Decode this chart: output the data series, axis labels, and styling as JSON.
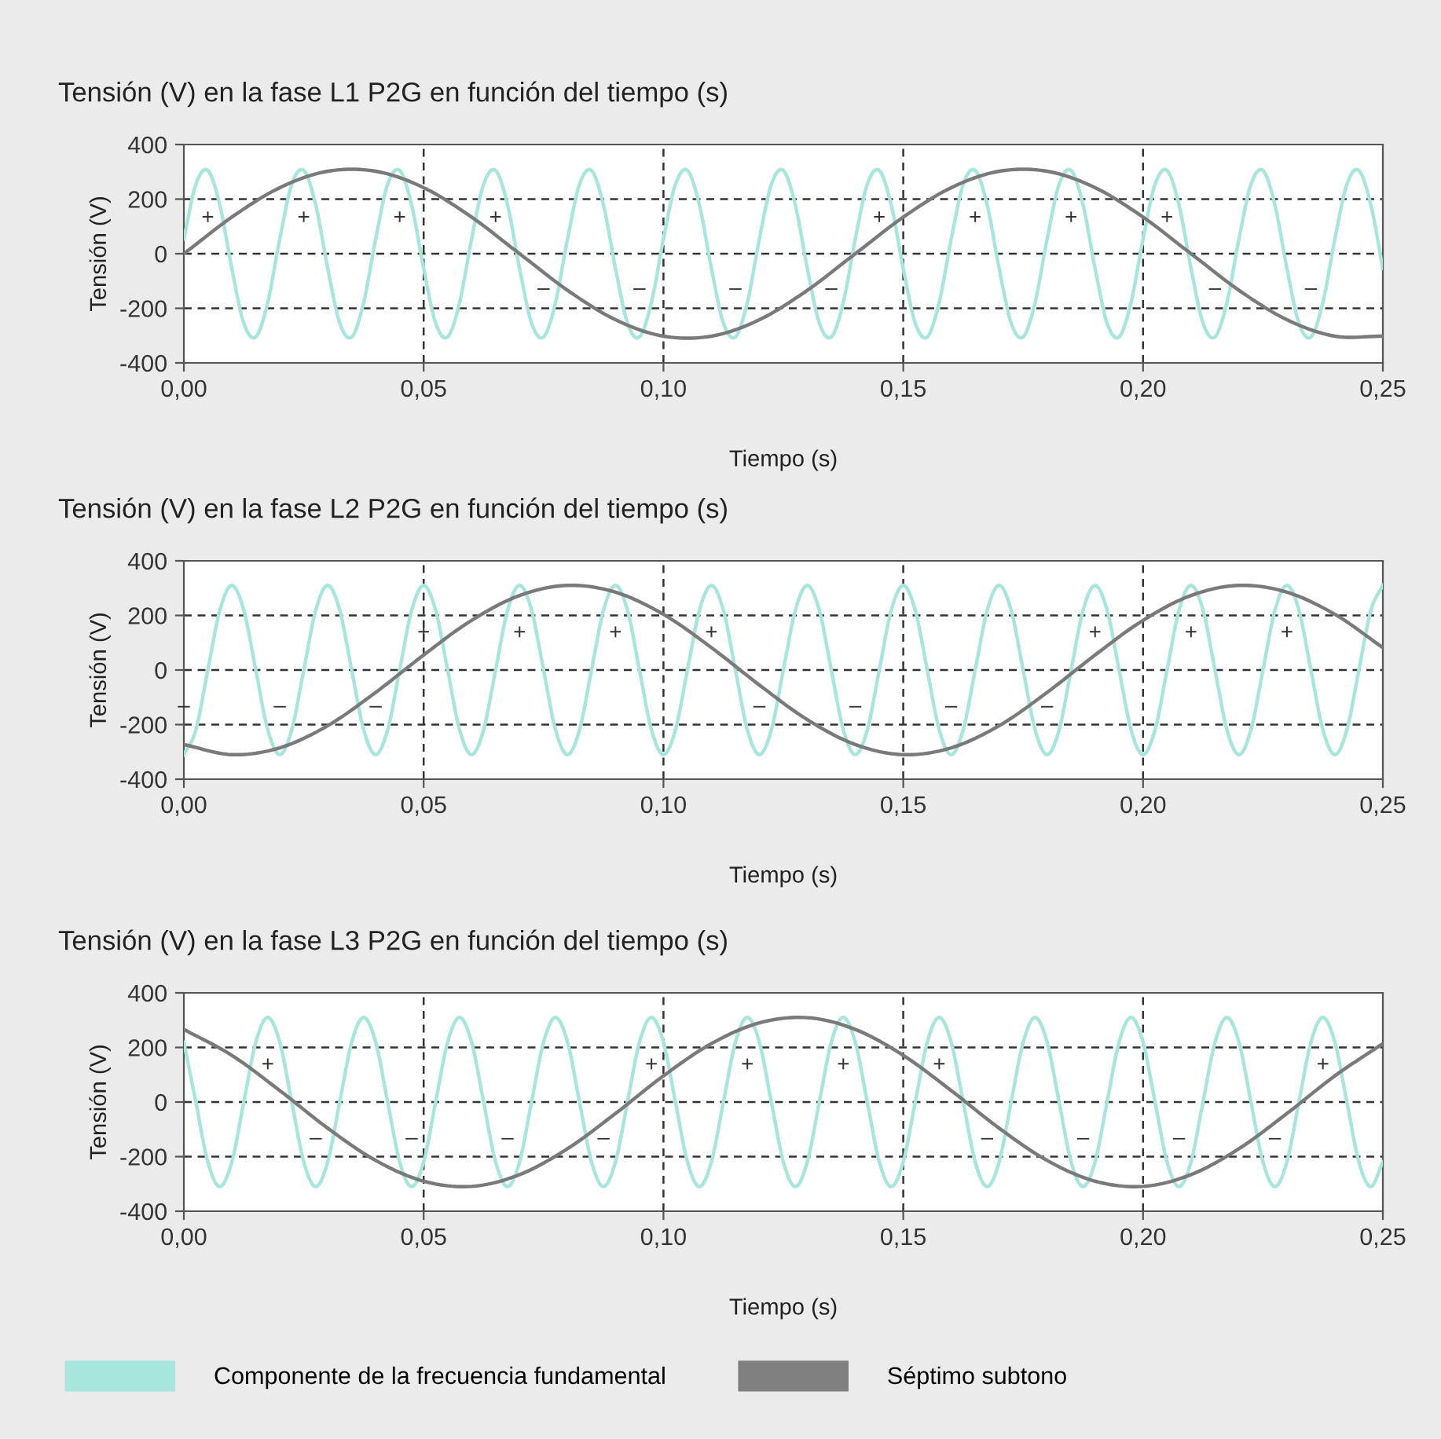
{
  "chart_data": [
    {
      "type": "line",
      "title": "Tensión (V) en la fase L1 P2G en función del tiempo (s)",
      "xlabel": "Tiempo (s)",
      "ylabel": "Tensión (V)",
      "xlim": [
        0,
        0.25
      ],
      "ylim": [
        -400,
        400
      ],
      "xticks": [
        {
          "value": 0,
          "label": "0,00"
        },
        {
          "value": 0.05,
          "label": "0,05"
        },
        {
          "value": 0.1,
          "label": "0,10"
        },
        {
          "value": 0.15,
          "label": "0,15"
        },
        {
          "value": 0.2,
          "label": "0,20"
        },
        {
          "value": 0.25,
          "label": "0,25"
        }
      ],
      "yticks": [
        -400,
        -200,
        0,
        200,
        400
      ],
      "grid": true,
      "legend": "bottom",
      "series": [
        {
          "name": "Componente de la frecuencia fundamental",
          "color": "#a6e6dc",
          "x": [
            0,
            0.0025,
            0.005,
            0.0075,
            0.01,
            0.0125,
            0.015,
            0.0175,
            0.02,
            0.0225,
            0.025,
            0.0275,
            0.03,
            0.0325,
            0.035,
            0.0375,
            0.04,
            0.0425,
            0.045,
            0.0475,
            0.05,
            0.0525,
            0.055,
            0.0575,
            0.06,
            0.0625,
            0.065,
            0.0675,
            0.07,
            0.0725,
            0.075,
            0.0775,
            0.08,
            0.0825,
            0.085,
            0.0875,
            0.09,
            0.0925,
            0.095,
            0.0975,
            0.1,
            0.1025,
            0.105,
            0.1075,
            0.11,
            0.1125,
            0.115,
            0.1175,
            0.12,
            0.1225,
            0.125,
            0.1275,
            0.13,
            0.1325,
            0.135,
            0.1375,
            0.14,
            0.1425,
            0.145,
            0.1475,
            0.15,
            0.1525,
            0.155,
            0.1575,
            0.16,
            0.1625,
            0.165,
            0.1675,
            0.17,
            0.1725,
            0.175,
            0.1775,
            0.18,
            0.1825,
            0.185,
            0.1875,
            0.19,
            0.1925,
            0.195,
            0.1975,
            0.2,
            0.2025,
            0.205,
            0.2075,
            0.21,
            0.2125,
            0.215,
            0.2175,
            0.22,
            0.2225,
            0.225,
            0.2275,
            0.23,
            0.2325,
            0.235,
            0.2375,
            0.24,
            0.2425,
            0.245,
            0.2475,
            0.25
          ],
          "values": [
            54,
            254,
            305,
            178,
            -54,
            -254,
            -305,
            -178,
            54,
            254,
            305,
            178,
            -54,
            -254,
            -305,
            -178,
            54,
            254,
            305,
            178,
            -54,
            -254,
            -305,
            -178,
            54,
            254,
            305,
            178,
            -54,
            -254,
            -305,
            -178,
            54,
            254,
            305,
            178,
            -54,
            -254,
            -305,
            -178,
            54,
            254,
            305,
            178,
            -54,
            -254,
            -305,
            -178,
            54,
            254,
            305,
            178,
            -54,
            -254,
            -305,
            -178,
            54,
            254,
            305,
            178,
            -54,
            -254,
            -305,
            -178,
            54,
            254,
            305,
            178,
            -54,
            -254,
            -305,
            -178,
            54,
            254,
            305,
            178,
            -54,
            -254,
            -305,
            -178,
            54,
            254,
            305,
            178,
            -54,
            -254,
            -305,
            -178,
            54,
            254,
            305,
            178,
            -54,
            -254,
            -305,
            -178,
            54,
            254,
            305,
            178,
            -54
          ]
        },
        {
          "name": "Séptimo subtono",
          "color": "#7a7a7a",
          "x": [
            0,
            0.01,
            0.02,
            0.03,
            0.04,
            0.05,
            0.06,
            0.07,
            0.08,
            0.09,
            0.1,
            0.11,
            0.12,
            0.13,
            0.14,
            0.15,
            0.16,
            0.17,
            0.18,
            0.19,
            0.2,
            0.21,
            0.22,
            0.23,
            0.24,
            0.25
          ],
          "values": [
            0,
            134,
            242,
            302,
            302,
            242,
            134,
            0,
            -134,
            -242,
            -302,
            -302,
            -242,
            -134,
            0,
            134,
            242,
            302,
            302,
            242,
            134,
            0,
            -134,
            -242,
            -302,
            -302
          ]
        }
      ],
      "annotations": [
        {
          "text": "+",
          "x": 0.005,
          "y": 305
        },
        {
          "text": "+",
          "x": 0.025,
          "y": 305
        },
        {
          "text": "+",
          "x": 0.045,
          "y": 305
        },
        {
          "text": "+",
          "x": 0.065,
          "y": 305
        },
        {
          "text": "+",
          "x": 0.145,
          "y": 305
        },
        {
          "text": "+",
          "x": 0.165,
          "y": 305
        },
        {
          "text": "+",
          "x": 0.185,
          "y": 305
        },
        {
          "text": "+",
          "x": 0.205,
          "y": 305
        },
        {
          "text": "–",
          "x": 0.075,
          "y": -305
        },
        {
          "text": "–",
          "x": 0.095,
          "y": -305
        },
        {
          "text": "–",
          "x": 0.115,
          "y": -305
        },
        {
          "text": "–",
          "x": 0.135,
          "y": -305
        },
        {
          "text": "–",
          "x": 0.215,
          "y": -305
        },
        {
          "text": "–",
          "x": 0.235,
          "y": -305
        }
      ]
    },
    {
      "type": "line",
      "title": "Tensión (V) en la fase L2 P2G en función del tiempo (s)",
      "xlabel": "Tiempo (s)",
      "ylabel": "Tensión (V)",
      "xlim": [
        0,
        0.25
      ],
      "ylim": [
        -400,
        400
      ],
      "xticks": [
        {
          "value": 0,
          "label": "0,00"
        },
        {
          "value": 0.05,
          "label": "0,05"
        },
        {
          "value": 0.1,
          "label": "0,10"
        },
        {
          "value": 0.15,
          "label": "0,15"
        },
        {
          "value": 0.2,
          "label": "0,20"
        },
        {
          "value": 0.25,
          "label": "0,25"
        }
      ],
      "yticks": [
        -400,
        -200,
        0,
        200,
        400
      ],
      "grid": true,
      "series": [
        {
          "color": "#a6e6dc",
          "x": [
            0,
            0.0025,
            0.005,
            0.0075,
            0.01,
            0.0125,
            0.015,
            0.0175,
            0.02,
            0.0225,
            0.025,
            0.0275,
            0.03,
            0.0325,
            0.035,
            0.0375,
            0.04,
            0.0425,
            0.045,
            0.0475,
            0.05,
            0.0525,
            0.055,
            0.0575,
            0.06,
            0.0625,
            0.065,
            0.0675,
            0.07,
            0.0725,
            0.075,
            0.0775,
            0.08,
            0.0825,
            0.085,
            0.0875,
            0.09,
            0.0925,
            0.095,
            0.0975,
            0.1,
            0.1025,
            0.105,
            0.1075,
            0.11,
            0.1125,
            0.115,
            0.1175,
            0.12,
            0.1225,
            0.125,
            0.1275,
            0.13,
            0.1325,
            0.135,
            0.1375,
            0.14,
            0.1425,
            0.145,
            0.1475,
            0.15,
            0.1525,
            0.155,
            0.1575,
            0.16,
            0.1625,
            0.165,
            0.1675,
            0.17,
            0.1725,
            0.175,
            0.1775,
            0.18,
            0.1825,
            0.185,
            0.1875,
            0.19,
            0.1925,
            0.195,
            0.1975,
            0.2,
            0.2025,
            0.205,
            0.2075,
            0.21,
            0.2125,
            0.215,
            0.2175,
            0.22,
            0.2225,
            0.225,
            0.2275,
            0.23,
            0.2325,
            0.235,
            0.2375,
            0.24,
            0.2425,
            0.245,
            0.2475,
            0.25
          ],
          "values": [
            -310,
            -219,
            0,
            219,
            310,
            219,
            0,
            -219,
            -310,
            -219,
            0,
            219,
            310,
            219,
            0,
            -219,
            -310,
            -219,
            0,
            219,
            310,
            219,
            0,
            -219,
            -310,
            -219,
            0,
            219,
            310,
            219,
            0,
            -219,
            -310,
            -219,
            0,
            219,
            310,
            219,
            0,
            -219,
            -310,
            -219,
            0,
            219,
            310,
            219,
            0,
            -219,
            -310,
            -219,
            0,
            219,
            310,
            219,
            0,
            -219,
            -310,
            -219,
            0,
            219,
            310,
            219,
            0,
            -219,
            -310,
            -219,
            0,
            219,
            310,
            219,
            0,
            -219,
            -310,
            -219,
            0,
            219,
            310,
            219,
            0,
            -219,
            -310,
            -219,
            0,
            219,
            310,
            219,
            0,
            -219,
            -310,
            -219,
            0,
            219,
            310,
            219,
            0,
            -219,
            -310,
            -219,
            0,
            219,
            310
          ]
        },
        {
          "color": "#7a7a7a",
          "x": [
            0,
            0.01,
            0.02,
            0.03,
            0.04,
            0.05,
            0.06,
            0.07,
            0.08,
            0.09,
            0.1,
            0.11,
            0.12,
            0.13,
            0.14,
            0.15,
            0.16,
            0.17,
            0.18,
            0.19,
            0.2,
            0.21,
            0.22,
            0.23,
            0.24,
            0.25
          ],
          "values": [
            -273,
            -310,
            -285,
            -204,
            -82,
            55,
            182,
            273,
            310,
            285,
            204,
            82,
            -55,
            -182,
            -273,
            -310,
            -285,
            -204,
            -82,
            55,
            182,
            273,
            310,
            285,
            204,
            82
          ]
        }
      ],
      "annotations": [
        {
          "text": "+",
          "x": 0.05,
          "y": 310
        },
        {
          "text": "+",
          "x": 0.07,
          "y": 310
        },
        {
          "text": "+",
          "x": 0.09,
          "y": 310
        },
        {
          "text": "+",
          "x": 0.11,
          "y": 310
        },
        {
          "text": "+",
          "x": 0.19,
          "y": 310
        },
        {
          "text": "+",
          "x": 0.21,
          "y": 310
        },
        {
          "text": "+",
          "x": 0.23,
          "y": 310
        },
        {
          "text": "–",
          "x": 0.0,
          "y": -310
        },
        {
          "text": "–",
          "x": 0.02,
          "y": -310
        },
        {
          "text": "–",
          "x": 0.04,
          "y": -310
        },
        {
          "text": "–",
          "x": 0.12,
          "y": -310
        },
        {
          "text": "–",
          "x": 0.14,
          "y": -310
        },
        {
          "text": "–",
          "x": 0.16,
          "y": -310
        },
        {
          "text": "–",
          "x": 0.18,
          "y": -310
        }
      ]
    },
    {
      "type": "line",
      "title": "Tensión (V) en la fase L3 P2G en función del tiempo (s)",
      "xlabel": "Tiempo (s)",
      "ylabel": "Tensión (V)",
      "xlim": [
        0,
        0.25
      ],
      "ylim": [
        -400,
        400
      ],
      "xticks": [
        {
          "value": 0,
          "label": "0,00"
        },
        {
          "value": 0.05,
          "label": "0,05"
        },
        {
          "value": 0.1,
          "label": "0,10"
        },
        {
          "value": 0.15,
          "label": "0,15"
        },
        {
          "value": 0.2,
          "label": "0,20"
        },
        {
          "value": 0.25,
          "label": "0,25"
        }
      ],
      "yticks": [
        -400,
        -200,
        0,
        200,
        400
      ],
      "grid": true,
      "series": [
        {
          "color": "#a6e6dc",
          "x": [
            0,
            0.0025,
            0.005,
            0.0075,
            0.01,
            0.0125,
            0.015,
            0.0175,
            0.02,
            0.0225,
            0.025,
            0.0275,
            0.03,
            0.0325,
            0.035,
            0.0375,
            0.04,
            0.0425,
            0.045,
            0.0475,
            0.05,
            0.0525,
            0.055,
            0.0575,
            0.06,
            0.0625,
            0.065,
            0.0675,
            0.07,
            0.0725,
            0.075,
            0.0775,
            0.08,
            0.0825,
            0.085,
            0.0875,
            0.09,
            0.0925,
            0.095,
            0.0975,
            0.1,
            0.1025,
            0.105,
            0.1075,
            0.11,
            0.1125,
            0.115,
            0.1175,
            0.12,
            0.1225,
            0.125,
            0.1275,
            0.13,
            0.1325,
            0.135,
            0.1375,
            0.14,
            0.1425,
            0.145,
            0.1475,
            0.15,
            0.1525,
            0.155,
            0.1575,
            0.16,
            0.1625,
            0.165,
            0.1675,
            0.17,
            0.1725,
            0.175,
            0.1775,
            0.18,
            0.1825,
            0.185,
            0.1875,
            0.19,
            0.1925,
            0.195,
            0.1975,
            0.2,
            0.2025,
            0.205,
            0.2075,
            0.21,
            0.2125,
            0.215,
            0.2175,
            0.22,
            0.2225,
            0.225,
            0.2275,
            0.23,
            0.2325,
            0.235,
            0.2375,
            0.24,
            0.2425,
            0.245,
            0.2475,
            0.25
          ],
          "values": [
            219,
            0,
            -219,
            -310,
            -219,
            0,
            219,
            310,
            219,
            0,
            -219,
            -310,
            -219,
            0,
            219,
            310,
            219,
            0,
            -219,
            -310,
            -219,
            0,
            219,
            310,
            219,
            0,
            -219,
            -310,
            -219,
            0,
            219,
            310,
            219,
            0,
            -219,
            -310,
            -219,
            0,
            219,
            310,
            219,
            0,
            -219,
            -310,
            -219,
            0,
            219,
            310,
            219,
            0,
            -219,
            -310,
            -219,
            0,
            219,
            310,
            219,
            0,
            -219,
            -310,
            -219,
            0,
            219,
            310,
            219,
            0,
            -219,
            -310,
            -219,
            0,
            219,
            310,
            219,
            0,
            -219,
            -310,
            -219,
            0,
            219,
            310,
            219,
            0,
            -219,
            -310,
            -219,
            0,
            219,
            310,
            219,
            0,
            -219,
            -310,
            -219,
            0,
            219,
            310,
            219,
            0,
            -219,
            -310,
            -219
          ]
        },
        {
          "color": "#7a7a7a",
          "x": [
            0,
            0.01,
            0.02,
            0.03,
            0.04,
            0.05,
            0.06,
            0.07,
            0.08,
            0.09,
            0.1,
            0.11,
            0.12,
            0.13,
            0.14,
            0.15,
            0.16,
            0.17,
            0.18,
            0.19,
            0.2,
            0.21,
            0.22,
            0.23,
            0.24,
            0.25
          ],
          "values": [
            266,
            171,
            42,
            -96,
            -214,
            -290,
            -309,
            -266,
            -171,
            -42,
            96,
            214,
            290,
            309,
            266,
            171,
            42,
            -96,
            -214,
            -290,
            -309,
            -266,
            -171,
            -42,
            96,
            214
          ]
        }
      ],
      "annotations": [
        {
          "text": "+",
          "x": 0.0175,
          "y": 310
        },
        {
          "text": "+",
          "x": 0.0975,
          "y": 310
        },
        {
          "text": "+",
          "x": 0.1175,
          "y": 310
        },
        {
          "text": "+",
          "x": 0.1375,
          "y": 310
        },
        {
          "text": "+",
          "x": 0.1575,
          "y": 310
        },
        {
          "text": "+",
          "x": 0.2375,
          "y": 310
        },
        {
          "text": "–",
          "x": 0.0275,
          "y": -310
        },
        {
          "text": "–",
          "x": 0.0475,
          "y": -310
        },
        {
          "text": "–",
          "x": 0.0675,
          "y": -310
        },
        {
          "text": "–",
          "x": 0.0875,
          "y": -310
        },
        {
          "text": "–",
          "x": 0.1675,
          "y": -310
        },
        {
          "text": "–",
          "x": 0.1875,
          "y": -310
        },
        {
          "text": "–",
          "x": 0.2075,
          "y": -310
        },
        {
          "text": "–",
          "x": 0.2275,
          "y": -310
        }
      ]
    }
  ]
}
